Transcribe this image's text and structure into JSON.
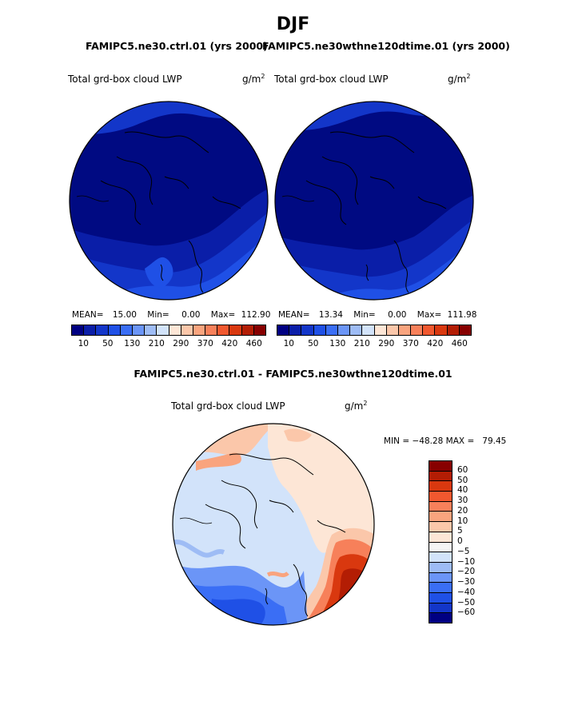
{
  "title": "DJF",
  "subtitle_left": "FAMIPC5.ne30.ctrl.01 (yrs 2000)",
  "subtitle_right": "FAMIPC5.ne30wthne120dtime.01 (yrs 2000)",
  "diff_title": "FAMIPC5.ne30.ctrl.01 - FAMIPC5.ne30wthne120dtime.01",
  "panels": [
    {
      "variable": "Total grd-box cloud LWP",
      "units": "g/m",
      "units_exp": "2",
      "stats": {
        "mean_label": "MEAN=",
        "mean": "15.00",
        "min_label": "Min=",
        "min": "0.00",
        "max_label": "Max=",
        "max": "112.90"
      }
    },
    {
      "variable": "Total grd-box cloud LWP",
      "units": "g/m",
      "units_exp": "2",
      "stats": {
        "mean_label": "MEAN=",
        "mean": "13.34",
        "min_label": "Min=",
        "min": "0.00",
        "max_label": "Max=",
        "max": "111.98"
      }
    }
  ],
  "diff_panel": {
    "variable": "Total grd-box cloud LWP",
    "units": "g/m",
    "units_exp": "2",
    "minmax": "MIN = −48.28 MAX =   79.45"
  },
  "abs_colorbar": {
    "tick_labels": [
      "10",
      "50",
      "130",
      "210",
      "290",
      "370",
      "420",
      "460"
    ],
    "colors": [
      "#000082",
      "#0a1ea8",
      "#1336c9",
      "#1f50e6",
      "#3a6ef5",
      "#6b95f7",
      "#9ebcf5",
      "#d2e3fa",
      "#fde6d6",
      "#fbc7aa",
      "#f9a47e",
      "#f7805a",
      "#f1582f",
      "#d9380f",
      "#b31d04",
      "#870000"
    ]
  },
  "diff_colorbar": {
    "tick_labels": [
      "60",
      "50",
      "40",
      "30",
      "20",
      "10",
      "5",
      "0",
      "−5",
      "−10",
      "−20",
      "−30",
      "−40",
      "−50",
      "−60"
    ],
    "colors": [
      "#870000",
      "#b31d04",
      "#d9380f",
      "#f1582f",
      "#f7805a",
      "#f9a47e",
      "#fbc7aa",
      "#fde6d6",
      "#f5f5f5",
      "#d2e3fa",
      "#9ebcf5",
      "#6b95f7",
      "#3a6ef5",
      "#1f50e6",
      "#1336c9",
      "#000082"
    ]
  },
  "colors": {
    "deep_blue": "#000a82",
    "mid_blue": "#1336c9",
    "light_blue": "#d2e3fa",
    "peach": "#fde6d6",
    "dark_red": "#b31d04"
  }
}
